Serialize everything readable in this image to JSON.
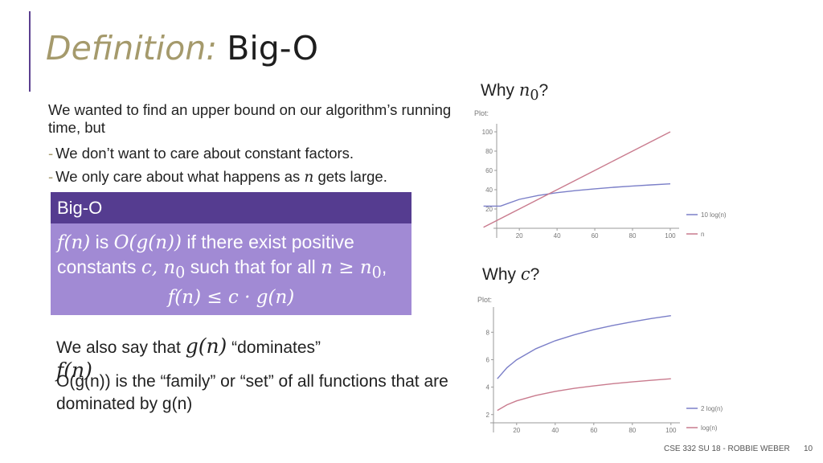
{
  "slide": {
    "title_italic": "Definition:",
    "title_main": "Big-O",
    "intro": "We wanted to find an upper bound on our algorithm’s running time, but",
    "bullets": [
      {
        "before": "We don’t want to care about constant factors.",
        "math": "",
        "after": ""
      },
      {
        "before": "We only care about what happens as ",
        "math": "n",
        "after": " gets large."
      }
    ],
    "box": {
      "header": "Big-O",
      "line1": {
        "f": "f(n)",
        "is": " is ",
        "O": "O(g(n))",
        "rest": " if there exist positive"
      },
      "line2": {
        "text": "constants ",
        "c": "c, n",
        "sub": "0",
        "mid": " such that for all ",
        "cond": "n ≥ n",
        "sub2": "0",
        "end": ","
      },
      "line3": "f(n) ≤ c · g(n)"
    },
    "also": {
      "before": "We also say that ",
      "g": "g(n)",
      "after": " “dominates”"
    },
    "also_f": "f(n)",
    "family": "O(g(n)) is the “family” or “set” of all functions that are dominated by g(n)",
    "why_n0": {
      "text": "Why ",
      "math": "n",
      "sub": "0",
      "end": "?"
    },
    "why_c": {
      "text": "Why ",
      "math": "c",
      "end": "?"
    }
  },
  "footer": {
    "course": "CSE 332 SU 18 - ROBBIE WEBER",
    "page": "10"
  },
  "chart_data": [
    {
      "type": "line",
      "title": "Plot:",
      "x": [
        1,
        10,
        20,
        30,
        40,
        50,
        60,
        70,
        80,
        90,
        100
      ],
      "series": [
        {
          "name": "10 log(n)",
          "color": "#7b7fc8",
          "values": [
            23.0,
            23.0,
            30.0,
            34.0,
            36.9,
            39.1,
            40.9,
            42.5,
            43.8,
            45.0,
            46.1
          ]
        },
        {
          "name": "n",
          "color": "#c97b8e",
          "values": [
            1,
            10,
            20,
            30,
            40,
            50,
            60,
            70,
            80,
            90,
            100
          ]
        }
      ],
      "xticks": [
        "20",
        "40",
        "60",
        "80",
        "100"
      ],
      "yticks": [
        "20",
        "40",
        "60",
        "80",
        "100"
      ],
      "xlim": [
        8,
        103
      ],
      "ylim": [
        0,
        105
      ],
      "grid": false,
      "legend": "bottom-right"
    },
    {
      "type": "line",
      "title": "Plot:",
      "x": [
        10,
        15,
        20,
        30,
        40,
        50,
        60,
        70,
        80,
        90,
        100
      ],
      "series": [
        {
          "name": "2 log(n)",
          "color": "#7b7fc8",
          "values": [
            4.61,
            5.42,
            5.99,
            6.8,
            7.38,
            7.82,
            8.19,
            8.5,
            8.76,
            9.0,
            9.21
          ]
        },
        {
          "name": "log(n)",
          "color": "#c97b8e",
          "values": [
            2.3,
            2.71,
            3.0,
            3.4,
            3.69,
            3.91,
            4.09,
            4.25,
            4.38,
            4.5,
            4.61
          ]
        }
      ],
      "xticks": [
        "20",
        "40",
        "60",
        "80",
        "100"
      ],
      "yticks": [
        "2",
        "4",
        "6",
        "8"
      ],
      "xlim": [
        8,
        103
      ],
      "ylim": [
        1.4,
        9.6
      ],
      "grid": false,
      "legend": "bottom-right"
    }
  ]
}
